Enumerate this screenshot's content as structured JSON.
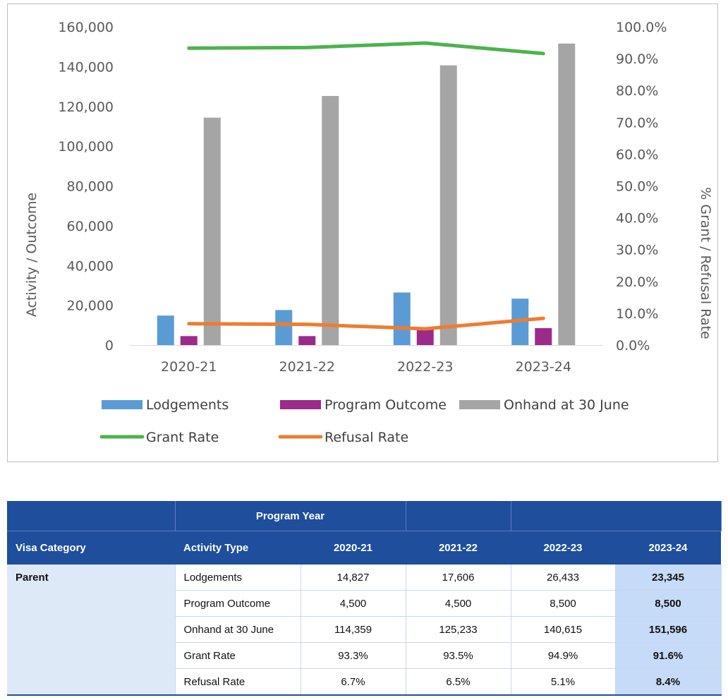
{
  "chart_data": {
    "type": "bar",
    "categories": [
      "2020-21",
      "2021-22",
      "2022-23",
      "2023-24"
    ],
    "series": [
      {
        "name": "Lodgements",
        "kind": "bar",
        "axis": "left",
        "color": "#5b9bd5",
        "values": [
          14827,
          17606,
          26433,
          23345
        ]
      },
      {
        "name": "Program Outcome",
        "kind": "bar",
        "axis": "left",
        "color": "#9c2a8a",
        "values": [
          4500,
          4500,
          8500,
          8500
        ]
      },
      {
        "name": "Onhand at 30 June",
        "kind": "bar",
        "axis": "left",
        "color": "#a5a5a5",
        "values": [
          114359,
          125233,
          140615,
          151596
        ]
      },
      {
        "name": "Grant Rate",
        "kind": "line",
        "axis": "right",
        "color": "#4cb34c",
        "values": [
          93.3,
          93.5,
          94.9,
          91.6
        ]
      },
      {
        "name": "Refusal Rate",
        "kind": "line",
        "axis": "right",
        "color": "#ed7d31",
        "values": [
          6.7,
          6.5,
          5.1,
          8.4
        ]
      }
    ],
    "left_axis": {
      "label": "Activity / Outcome",
      "ylim": [
        0,
        160000
      ],
      "ticks": [
        "160,000",
        "140,000",
        "120,000",
        "100,000",
        "80,000",
        "60,000",
        "40,000",
        "20,000",
        "0"
      ]
    },
    "right_axis": {
      "label": "% Grant / Refusal Rate",
      "ylim": [
        0,
        100
      ],
      "ticks": [
        "100.0%",
        "90.0%",
        "80.0%",
        "70.0%",
        "60.0%",
        "50.0%",
        "40.0%",
        "30.0%",
        "20.0%",
        "10.0%",
        "0.0%"
      ]
    },
    "legend_position": "bottom",
    "grid": false
  },
  "table": {
    "group_header": "Program Year",
    "col_headers": [
      "Visa Category",
      "Activity Type",
      "2020-21",
      "2021-22",
      "2022-23",
      "2023-24"
    ],
    "category": "Parent",
    "rows": [
      {
        "activity": "Lodgements",
        "values": [
          "14,827",
          "17,606",
          "26,433",
          "23,345"
        ]
      },
      {
        "activity": "Program Outcome",
        "values": [
          "4,500",
          "4,500",
          "8,500",
          "8,500"
        ]
      },
      {
        "activity": "Onhand at 30 June",
        "values": [
          "114,359",
          "125,233",
          "140,615",
          "151,596"
        ]
      },
      {
        "activity": "Grant Rate",
        "values": [
          "93.3%",
          "93.5%",
          "94.9%",
          "91.6%"
        ]
      },
      {
        "activity": "Refusal Rate",
        "values": [
          "6.7%",
          "6.5%",
          "5.1%",
          "8.4%"
        ]
      }
    ]
  }
}
